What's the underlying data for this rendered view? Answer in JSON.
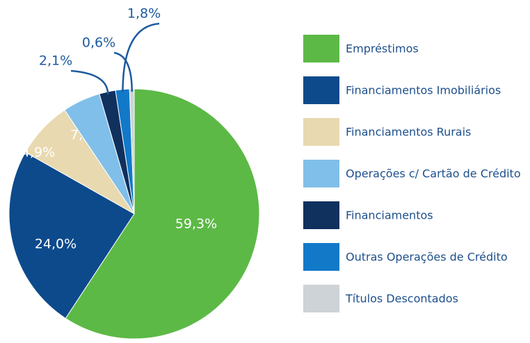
{
  "chart_data": {
    "type": "pie",
    "categories": [
      "Empréstimos",
      "Financiamentos Imobiliários",
      "Financiamentos Rurais",
      "Operações c/ Cartão de Crédito",
      "Financiamentos",
      "Outras Operações de Crédito",
      "Títulos Descontados"
    ],
    "values": [
      59.3,
      24.0,
      7.4,
      4.9,
      2.1,
      1.8,
      0.6
    ],
    "value_labels": [
      "59,3%",
      "24,0%",
      "7,4%",
      "4,9%",
      "2,1%",
      "1,8%",
      "0,6%"
    ],
    "colors": [
      "#5cb946",
      "#0d4a8c",
      "#e8d9b0",
      "#80bfea",
      "#10305e",
      "#1279c9",
      "#cdd3d6"
    ],
    "legend": "right"
  }
}
